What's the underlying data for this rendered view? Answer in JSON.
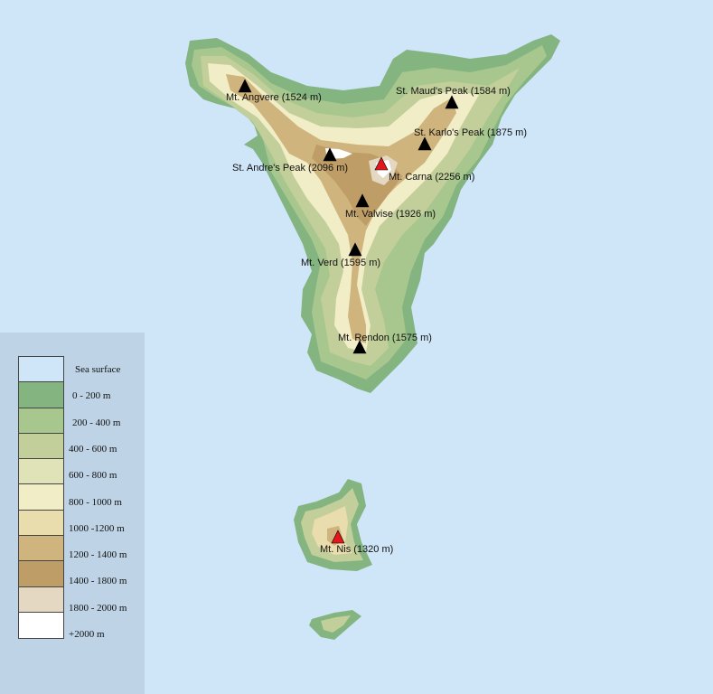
{
  "peaks": [
    {
      "label": "Mt. Angvere (1524 m)",
      "highest": false
    },
    {
      "label": "St. Maud's Peak (1584 m)",
      "highest": false
    },
    {
      "label": "St. Karlo's Peak (1875 m)",
      "highest": false
    },
    {
      "label": "St. Andre's Peak (2096 m)",
      "highest": false
    },
    {
      "label": "Mt. Carna (2256 m)",
      "highest": true
    },
    {
      "label": "Mt. Valvise (1926 m)",
      "highest": false
    },
    {
      "label": "Mt. Verd (1595 m)",
      "highest": false
    },
    {
      "label": "Mt. Rendon (1575 m)",
      "highest": false
    },
    {
      "label": "Mt. Nis (1320 m)",
      "highest": true
    }
  ],
  "legend": [
    {
      "label": "Sea surface",
      "color": "#cfe5f8"
    },
    {
      "label": "0 - 200 m",
      "color": "#84b47f"
    },
    {
      "label": "200 - 400 m",
      "color": "#a7c78e"
    },
    {
      "label": "400 - 600 m",
      "color": "#c2cf9a"
    },
    {
      "label": "600 - 800 m",
      "color": "#e0e2b8"
    },
    {
      "label": "800 - 1000 m",
      "color": "#f1edc6"
    },
    {
      "label": "1000 -1200 m",
      "color": "#e9dcad"
    },
    {
      "label": "1200 - 1400 m",
      "color": "#cfb47e"
    },
    {
      "label": "1400 - 1800 m",
      "color": "#bf9d66"
    },
    {
      "label": "1800 - 2000 m",
      "color": "#e4d8c3"
    },
    {
      "label": "+2000 m",
      "color": "#ffffff"
    }
  ],
  "colors": {
    "peak_marker": "#000000",
    "highest_peak_marker": "#e3161c"
  }
}
